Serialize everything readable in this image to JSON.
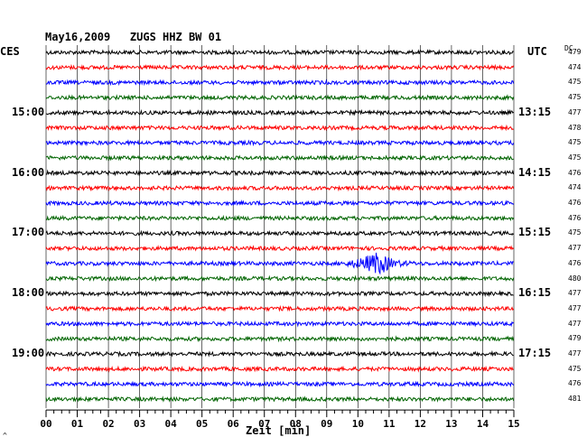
{
  "header": {
    "title": "May16,2009   ZUGS HHZ BW 01",
    "left_timezone": "CES",
    "right_timezone": "UTC",
    "dc_label": "DC"
  },
  "footer": {
    "xlabel": "Zeit [min]",
    "corner_mark": "^"
  },
  "colors": {
    "trace_cycle": [
      "#000000",
      "#ff0000",
      "#0000ff",
      "#006400"
    ],
    "grid": "#000000",
    "background": "#ffffff"
  },
  "chart_data": {
    "type": "line",
    "title": "May16,2009   ZUGS HHZ BW 01",
    "xlabel": "Zeit [min]",
    "xlim": [
      0,
      15
    ],
    "x_ticks": [
      "00",
      "01",
      "02",
      "03",
      "04",
      "05",
      "06",
      "07",
      "08",
      "09",
      "10",
      "11",
      "12",
      "13",
      "14",
      "15"
    ],
    "minor_tick_step_min": 0.25,
    "minutes_per_trace": 15,
    "traces_per_hour": 4,
    "left_hour_labels": [
      {
        "trace": 4,
        "label": "15:00"
      },
      {
        "trace": 8,
        "label": "16:00"
      },
      {
        "trace": 12,
        "label": "17:00"
      },
      {
        "trace": 16,
        "label": "18:00"
      },
      {
        "trace": 20,
        "label": "19:00"
      }
    ],
    "right_time_labels": [
      {
        "trace": 4,
        "label": "13:15"
      },
      {
        "trace": 8,
        "label": "14:15"
      },
      {
        "trace": 12,
        "label": "15:15"
      },
      {
        "trace": 16,
        "label": "16:15"
      },
      {
        "trace": 20,
        "label": "17:15"
      }
    ],
    "dc_offsets": [
      479,
      474,
      475,
      475,
      477,
      478,
      475,
      475,
      476,
      474,
      476,
      476,
      475,
      477,
      476,
      480,
      477,
      477,
      477,
      479,
      477,
      475,
      476,
      481
    ],
    "event": {
      "trace": 14,
      "start_min": 9.2,
      "peak_min": 10.7,
      "end_min": 12.0
    }
  }
}
